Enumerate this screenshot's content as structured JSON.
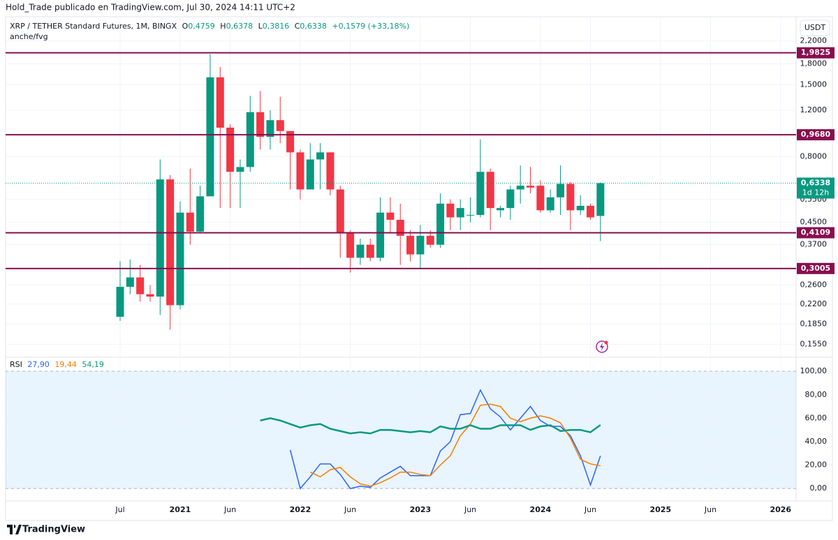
{
  "header": {
    "publisher": "Hold_Trade publicado en TradingView.com, Jul 30, 2024 14:11 UTC+2",
    "logo": "TradingView",
    "currency": "USDT"
  },
  "chart_data": [
    {
      "type": "candlestick",
      "title": "XRP / TETHER Standard Futures, 1M, BINGX",
      "ohlc_header": [
        "O",
        "0,4759",
        "H",
        "0,6378",
        "L",
        "0,3816",
        "C",
        "0,6338",
        "+0,1579 (+33,18%)"
      ],
      "indicator": "anche/fvg",
      "x": [
        "2020-07",
        "2020-08",
        "2020-09",
        "2020-10",
        "2020-11",
        "2020-12",
        "2021-01",
        "2021-02",
        "2021-03",
        "2021-04",
        "2021-05",
        "2021-06",
        "2021-07",
        "2021-08",
        "2021-09",
        "2021-10",
        "2021-11",
        "2021-12",
        "2022-01",
        "2022-02",
        "2022-03",
        "2022-04",
        "2022-05",
        "2022-06",
        "2022-07",
        "2022-08",
        "2022-09",
        "2022-10",
        "2022-11",
        "2022-12",
        "2023-01",
        "2023-02",
        "2023-03",
        "2023-04",
        "2023-05",
        "2023-06",
        "2023-07",
        "2023-08",
        "2023-09",
        "2023-10",
        "2023-11",
        "2023-12",
        "2024-01",
        "2024-02",
        "2024-03",
        "2024-04",
        "2024-05",
        "2024-06",
        "2024-07"
      ],
      "open": [
        0.197,
        0.256,
        0.278,
        0.24,
        0.235,
        0.655,
        0.218,
        0.49,
        0.415,
        0.565,
        1.6,
        1.03,
        0.7,
        0.73,
        1.18,
        0.95,
        1.1,
        1.0,
        0.83,
        0.6,
        0.78,
        0.83,
        0.6,
        0.41,
        0.33,
        0.37,
        0.33,
        0.49,
        0.46,
        0.4,
        0.34,
        0.4,
        0.37,
        0.53,
        0.47,
        0.48,
        0.48,
        0.7,
        0.5,
        0.51,
        0.6,
        0.62,
        0.62,
        0.5,
        0.56,
        0.63,
        0.5,
        0.52,
        0.4759
      ],
      "high": [
        0.32,
        0.325,
        0.31,
        0.26,
        0.78,
        0.68,
        0.54,
        0.72,
        0.62,
        1.96,
        1.75,
        1.06,
        0.78,
        1.36,
        1.42,
        1.2,
        1.35,
        1.0,
        0.85,
        0.9,
        0.9,
        0.83,
        0.62,
        0.42,
        0.39,
        0.39,
        0.56,
        0.56,
        0.53,
        0.42,
        0.44,
        0.42,
        0.58,
        0.55,
        0.55,
        0.56,
        0.93,
        0.72,
        0.52,
        0.62,
        0.74,
        0.73,
        0.65,
        0.6,
        0.74,
        0.64,
        0.57,
        0.53,
        0.6378
      ],
      "low": [
        0.19,
        0.24,
        0.225,
        0.225,
        0.2,
        0.176,
        0.21,
        0.37,
        0.41,
        0.57,
        0.51,
        0.51,
        0.51,
        0.7,
        0.85,
        0.85,
        0.9,
        0.6,
        0.55,
        0.6,
        0.6,
        0.57,
        0.33,
        0.29,
        0.31,
        0.32,
        0.32,
        0.41,
        0.31,
        0.32,
        0.3,
        0.36,
        0.36,
        0.42,
        0.42,
        0.45,
        0.47,
        0.42,
        0.47,
        0.46,
        0.53,
        0.58,
        0.49,
        0.49,
        0.48,
        0.42,
        0.48,
        0.46,
        0.3816
      ],
      "close": [
        0.256,
        0.278,
        0.24,
        0.235,
        0.655,
        0.218,
        0.49,
        0.415,
        0.565,
        1.6,
        1.03,
        0.7,
        0.73,
        1.18,
        0.95,
        1.1,
        1.0,
        0.83,
        0.6,
        0.78,
        0.83,
        0.6,
        0.41,
        0.33,
        0.37,
        0.33,
        0.49,
        0.46,
        0.4,
        0.34,
        0.4,
        0.37,
        0.53,
        0.47,
        0.51,
        0.48,
        0.7,
        0.51,
        0.51,
        0.6,
        0.62,
        0.61,
        0.5,
        0.56,
        0.63,
        0.5,
        0.52,
        0.47,
        0.6338
      ],
      "up_color": "#089981",
      "down_color": "#f23645",
      "log_scale": true,
      "ylim": [
        0.14,
        2.62
      ],
      "yticks": [
        {
          "value": 2.2,
          "label": "2,2000"
        },
        {
          "value": 1.8,
          "label": "1,8000"
        },
        {
          "value": 1.5,
          "label": "1,5000"
        },
        {
          "value": 1.2,
          "label": "1,2000"
        },
        {
          "value": 0.8,
          "label": "0,8000"
        },
        {
          "value": 0.55,
          "label": "0,5500"
        },
        {
          "value": 0.45,
          "label": "0,4500"
        },
        {
          "value": 0.37,
          "label": "0,3700"
        },
        {
          "value": 0.26,
          "label": "0,2600"
        },
        {
          "value": 0.22,
          "label": "0,2200"
        },
        {
          "value": 0.185,
          "label": "0,1850"
        },
        {
          "value": 0.155,
          "label": "0,1550"
        }
      ],
      "levels": [
        {
          "value": 1.9825,
          "label": "1,9825"
        },
        {
          "value": 0.968,
          "label": "0,9680"
        },
        {
          "value": 0.4109,
          "label": "0,4109"
        },
        {
          "value": 0.3005,
          "label": "0,3005"
        }
      ],
      "level_color": "#880e4f",
      "last_price": {
        "value": 0.6338,
        "label": "0,6338"
      },
      "countdown": "1d 12h"
    },
    {
      "type": "line",
      "title": "RSI",
      "x": [
        "2021-09",
        "2021-10",
        "2021-11",
        "2021-12",
        "2022-01",
        "2022-02",
        "2022-03",
        "2022-04",
        "2022-05",
        "2022-06",
        "2022-07",
        "2022-08",
        "2022-09",
        "2022-10",
        "2022-11",
        "2022-12",
        "2023-01",
        "2023-02",
        "2023-03",
        "2023-04",
        "2023-05",
        "2023-06",
        "2023-07",
        "2023-08",
        "2023-09",
        "2023-10",
        "2023-11",
        "2023-12",
        "2024-01",
        "2024-02",
        "2024-03",
        "2024-04",
        "2024-05",
        "2024-06",
        "2024-07"
      ],
      "series": [
        {
          "color": "#2962ff",
          "last_label": "27,90",
          "values": [
            null,
            null,
            null,
            33,
            0,
            10,
            21,
            21,
            12,
            0,
            2,
            1,
            9,
            14,
            19,
            11,
            11,
            11,
            32,
            40,
            63,
            64,
            84,
            68,
            61,
            50,
            60,
            70,
            58,
            53,
            53,
            45,
            28,
            3,
            27.9
          ]
        },
        {
          "color": "#f57c00",
          "last_label": "19,44",
          "values": [
            null,
            null,
            null,
            null,
            null,
            14,
            10,
            16,
            18,
            10,
            4,
            2,
            5,
            9,
            14,
            14,
            12,
            11,
            20,
            28,
            45,
            55,
            71,
            72,
            70,
            60,
            57,
            60,
            62,
            60,
            56,
            43,
            25,
            21,
            19.44
          ]
        },
        {
          "color": "#089981",
          "last_label": "54,19",
          "values": [
            58,
            60,
            58,
            55,
            52,
            54,
            55,
            51,
            49,
            47,
            48,
            47,
            50,
            50,
            49,
            48,
            49,
            48,
            53,
            51,
            51,
            54,
            51,
            51,
            54,
            54,
            54,
            50,
            53,
            54,
            49,
            50,
            50,
            48,
            54.19
          ]
        }
      ],
      "band": [
        0,
        100
      ],
      "ylim": [
        -7,
        112
      ],
      "yticks": [
        {
          "value": 100,
          "label": "100,00"
        },
        {
          "value": 80,
          "label": "80,00"
        },
        {
          "value": 60,
          "label": "60,00"
        },
        {
          "value": 40,
          "label": "40,00"
        },
        {
          "value": 20,
          "label": "20,00"
        },
        {
          "value": 0,
          "label": "0,00"
        }
      ],
      "xticks": [
        {
          "value": "2020-07",
          "label": "Jul"
        },
        {
          "value": "2021-01",
          "label": "2021"
        },
        {
          "value": "2021-06",
          "label": "Jun"
        },
        {
          "value": "2022-01",
          "label": "2022"
        },
        {
          "value": "2022-06",
          "label": "Jun"
        },
        {
          "value": "2023-01",
          "label": "2023"
        },
        {
          "value": "2023-06",
          "label": "Jun"
        },
        {
          "value": "2024-01",
          "label": "2024"
        },
        {
          "value": "2024-06",
          "label": "Jun"
        },
        {
          "value": "2025-01",
          "label": "2025"
        },
        {
          "value": "2025-06",
          "label": "Jun"
        },
        {
          "value": "2026-01",
          "label": "2026"
        }
      ]
    }
  ]
}
